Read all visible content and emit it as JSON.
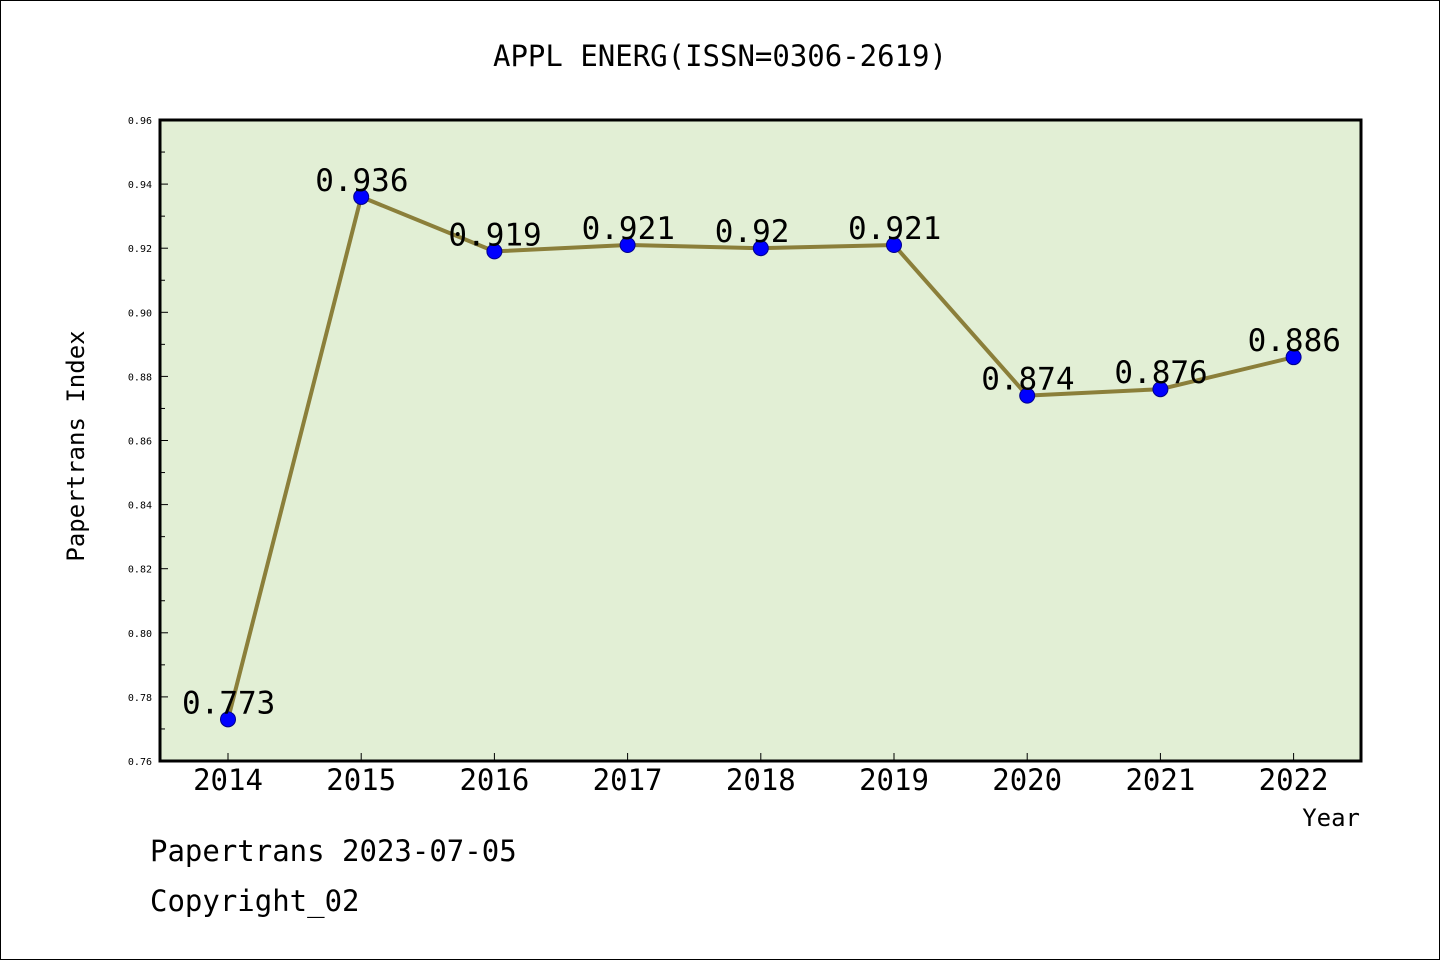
{
  "chart_data": {
    "type": "line",
    "title": "APPL ENERG(ISSN=0306-2619)",
    "xlabel": "Year",
    "ylabel": "Papertrans Index",
    "categories": [
      "2014",
      "2015",
      "2016",
      "2017",
      "2018",
      "2019",
      "2020",
      "2021",
      "2022"
    ],
    "values": [
      0.773,
      0.936,
      0.919,
      0.921,
      0.92,
      0.921,
      0.874,
      0.876,
      0.886
    ],
    "data_labels": [
      "0.773",
      "0.936",
      "0.919",
      "0.921",
      "0.92",
      "0.921",
      "0.874",
      "0.876",
      "0.886"
    ],
    "ylim": [
      0.76,
      0.96
    ],
    "yticks": [
      "0.76",
      "0.78",
      "0.80",
      "0.82",
      "0.84",
      "0.86",
      "0.88",
      "0.90",
      "0.92",
      "0.94",
      "0.96"
    ],
    "grid": false,
    "colors": {
      "plot_background": "#e2efd5",
      "line": "#8b7f3a",
      "marker": "#0000ff",
      "axis": "#000000"
    }
  },
  "footer": {
    "line1": "Papertrans 2023-07-05",
    "line2": "Copyright_02"
  }
}
